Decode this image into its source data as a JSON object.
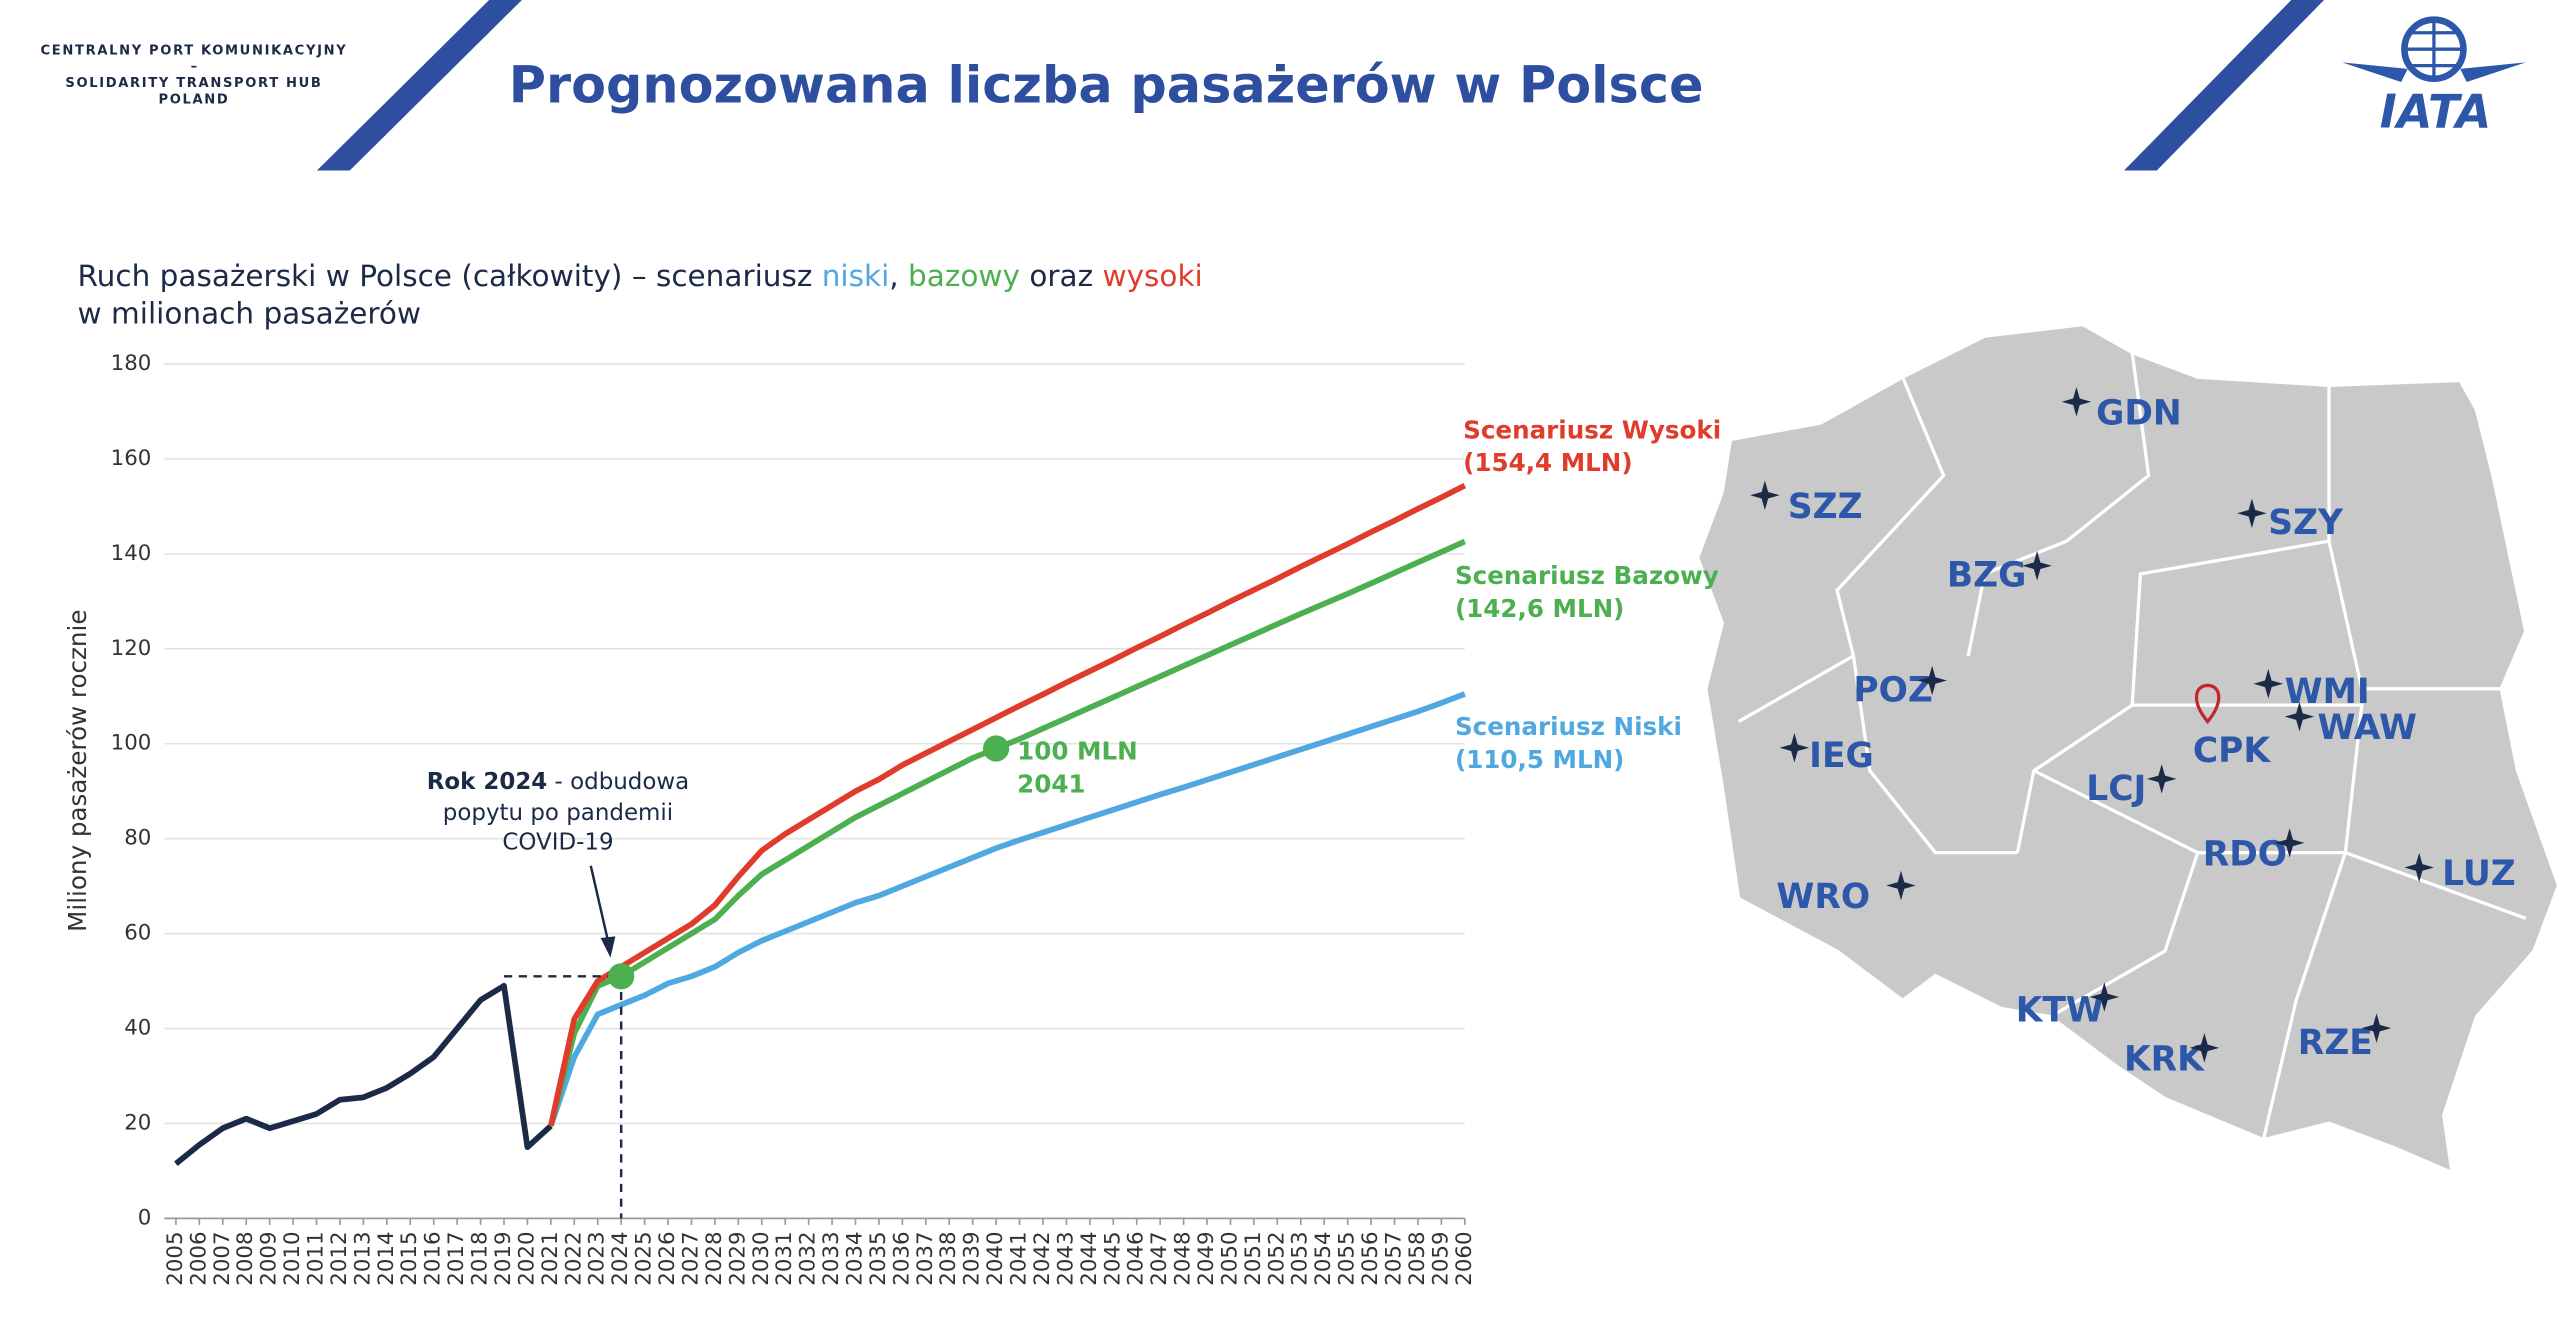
{
  "header": {
    "org_lines": [
      "CENTRALNY PORT KOMUNIKACYJNY",
      "–",
      "SOLIDARITY TRANSPORT HUB",
      "POLAND"
    ],
    "title": "Prognozowana liczba pasażerów w Polsce",
    "logo": "IATA"
  },
  "chart_data": {
    "type": "line",
    "subtitle": [
      "Ruch pasażerski w Polsce (całkowity) – scenariusz ",
      "niski",
      ", ",
      "bazowy",
      " oraz ",
      "wysoki"
    ],
    "subtitle_line2": "w milionach pasażerów",
    "y_label": "Miliony pasażerów rocznie",
    "x": [
      2005,
      2006,
      2007,
      2008,
      2009,
      2010,
      2011,
      2012,
      2013,
      2014,
      2015,
      2016,
      2017,
      2018,
      2019,
      2020,
      2021,
      2022,
      2023,
      2024,
      2025,
      2026,
      2027,
      2028,
      2029,
      2030,
      2031,
      2032,
      2033,
      2034,
      2035,
      2036,
      2037,
      2038,
      2039,
      2040,
      2041,
      2042,
      2043,
      2044,
      2045,
      2046,
      2047,
      2048,
      2049,
      2050,
      2051,
      2052,
      2053,
      2054,
      2055,
      2056,
      2057,
      2058,
      2059,
      2060
    ],
    "xlim": [
      2005,
      2060
    ],
    "xticks": [
      2005,
      2006,
      2007,
      2008,
      2009,
      2010,
      2011,
      2012,
      2013,
      2014,
      2015,
      2016,
      2017,
      2018,
      2019,
      2020,
      2021,
      2022,
      2023,
      2024,
      2025,
      2026,
      2027,
      2028,
      2029,
      2030,
      2031,
      2032,
      2033,
      2034,
      2035,
      2036,
      2037,
      2038,
      2039,
      2040,
      2041,
      2042,
      2043,
      2044,
      2045,
      2046,
      2047,
      2048,
      2049,
      2050,
      2051,
      2052,
      2053,
      2054,
      2055,
      2056,
      2057,
      2058,
      2059,
      2060
    ],
    "ylim": [
      0,
      180
    ],
    "yticks": [
      0,
      20,
      40,
      60,
      80,
      100,
      120,
      140,
      160,
      180
    ],
    "grid": true,
    "series": [
      {
        "color": "#1b2a47",
        "values": [
          11.5,
          15.5,
          19,
          21,
          19,
          20.5,
          22,
          25,
          25.5,
          27.5,
          30.5,
          34,
          40,
          46,
          49,
          15,
          19.5,
          null,
          null,
          null,
          null,
          null,
          null,
          null,
          null,
          null,
          null,
          null,
          null,
          null,
          null,
          null,
          null,
          null,
          null,
          null,
          null,
          null,
          null,
          null,
          null,
          null,
          null,
          null,
          null,
          null,
          null,
          null,
          null,
          null,
          null,
          null,
          null,
          null,
          null,
          null
        ]
      },
      {
        "name": "Scenariusz Niski",
        "value_label": "(110,5 MLN)",
        "color": "#4fa8e0",
        "values": [
          null,
          null,
          null,
          null,
          null,
          null,
          null,
          null,
          null,
          null,
          null,
          null,
          null,
          null,
          null,
          null,
          19.5,
          34,
          43,
          45,
          47,
          49.5,
          51,
          53,
          56,
          58.5,
          60.5,
          62.5,
          64.5,
          66.5,
          68,
          70,
          72,
          74,
          76,
          78,
          79.7,
          81.3,
          82.9,
          84.5,
          86.1,
          87.7,
          89.3,
          90.8,
          92.4,
          94,
          95.6,
          97.2,
          98.8,
          100.4,
          102,
          103.6,
          105.2,
          106.8,
          108.6,
          110.5
        ]
      },
      {
        "name": "Scenariusz Bazowy",
        "value_label": "(142,6 MLN)",
        "color": "#4caf50",
        "values": [
          null,
          null,
          null,
          null,
          null,
          null,
          null,
          null,
          null,
          null,
          null,
          null,
          null,
          null,
          null,
          null,
          19.5,
          39,
          49,
          51,
          54,
          57,
          60,
          63,
          68,
          72.5,
          75.5,
          78.5,
          81.5,
          84.5,
          87,
          89.5,
          92,
          94.5,
          97,
          99,
          101,
          103.2,
          105.4,
          107.6,
          109.8,
          112,
          114.2,
          116.4,
          118.6,
          120.8,
          123,
          125.2,
          127.4,
          129.5,
          131.6,
          133.8,
          136,
          138.2,
          140.4,
          142.6
        ]
      },
      {
        "name": "Scenariusz Wysoki",
        "value_label": "(154,4 MLN)",
        "color": "#e03c2c",
        "values": [
          null,
          null,
          null,
          null,
          null,
          null,
          null,
          null,
          null,
          null,
          null,
          null,
          null,
          null,
          null,
          null,
          19.5,
          42,
          50,
          53,
          56,
          59,
          62,
          66,
          72,
          77.5,
          81,
          84,
          87,
          90,
          92.5,
          95.5,
          98,
          100.5,
          103,
          105.5,
          108,
          110.4,
          112.9,
          115.3,
          117.7,
          120.2,
          122.6,
          125.1,
          127.5,
          130,
          132.4,
          134.8,
          137.3,
          139.7,
          142.1,
          144.6,
          147,
          149.5,
          151.9,
          154.4
        ]
      }
    ],
    "annotation": {
      "bold": "Rok 2024",
      "lines": [
        " - odbudowa",
        "popytu po pandemii",
        "COVID-19"
      ]
    },
    "milestone": {
      "lines": [
        "100 MLN",
        "2041"
      ]
    }
  },
  "map": {
    "airports": [
      "GDN",
      "SZZ",
      "SZY",
      "BZG",
      "POZ",
      "WMI",
      "WAW",
      "CPK",
      "IEG",
      "LCJ",
      "RDO",
      "LUZ",
      "WRO",
      "KTW",
      "KRK",
      "RZE"
    ]
  }
}
